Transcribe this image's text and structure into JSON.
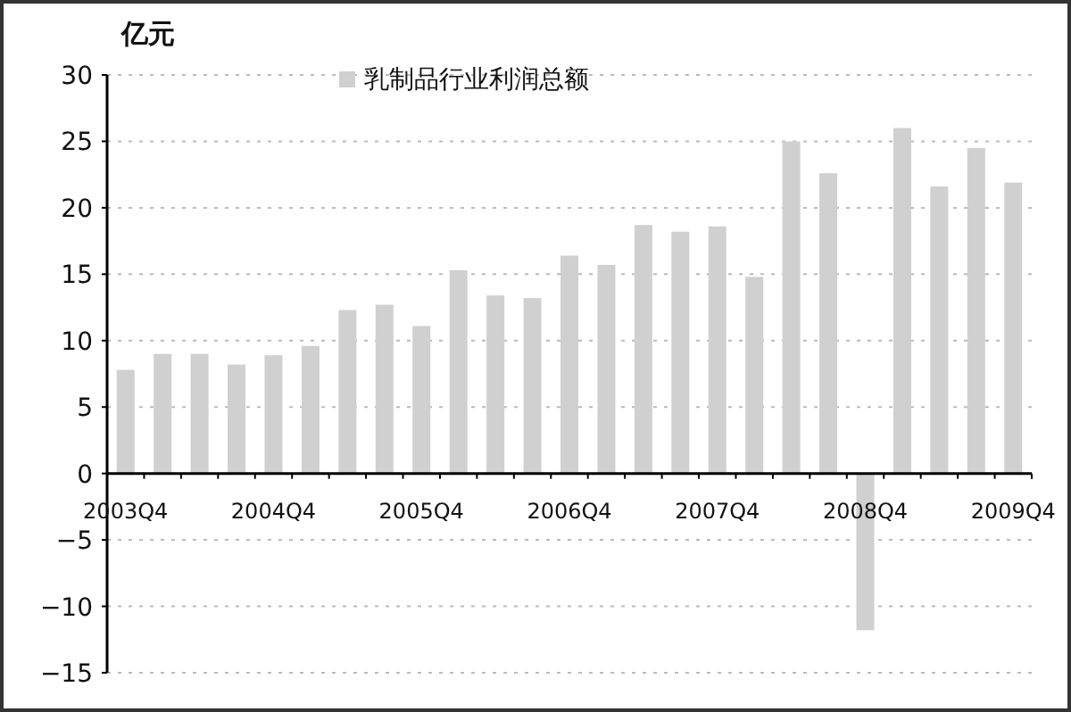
{
  "chart_data": {
    "type": "bar",
    "ylabel": "亿元",
    "categories": [
      "2003Q4",
      null,
      null,
      null,
      "2004Q4",
      null,
      null,
      null,
      "2005Q4",
      null,
      null,
      null,
      "2006Q4",
      null,
      null,
      null,
      "2007Q4",
      null,
      null,
      null,
      "2008Q4",
      null,
      null,
      null,
      "2009Q4"
    ],
    "series": [
      {
        "name": "乳制品行业利润总额",
        "color": "#d0d0d0",
        "values": [
          7.8,
          9.0,
          9.0,
          8.2,
          8.9,
          9.6,
          12.3,
          12.7,
          11.1,
          15.3,
          13.4,
          13.2,
          16.4,
          15.7,
          18.7,
          18.2,
          18.6,
          14.8,
          25.0,
          22.6,
          -11.8,
          26.0,
          21.6,
          24.5,
          21.9
        ]
      }
    ],
    "ylim": [
      -15,
      30
    ],
    "yticks": [
      -15,
      -10,
      -5,
      0,
      5,
      10,
      15,
      20,
      25,
      30
    ],
    "grid": "y",
    "legend": "top"
  }
}
